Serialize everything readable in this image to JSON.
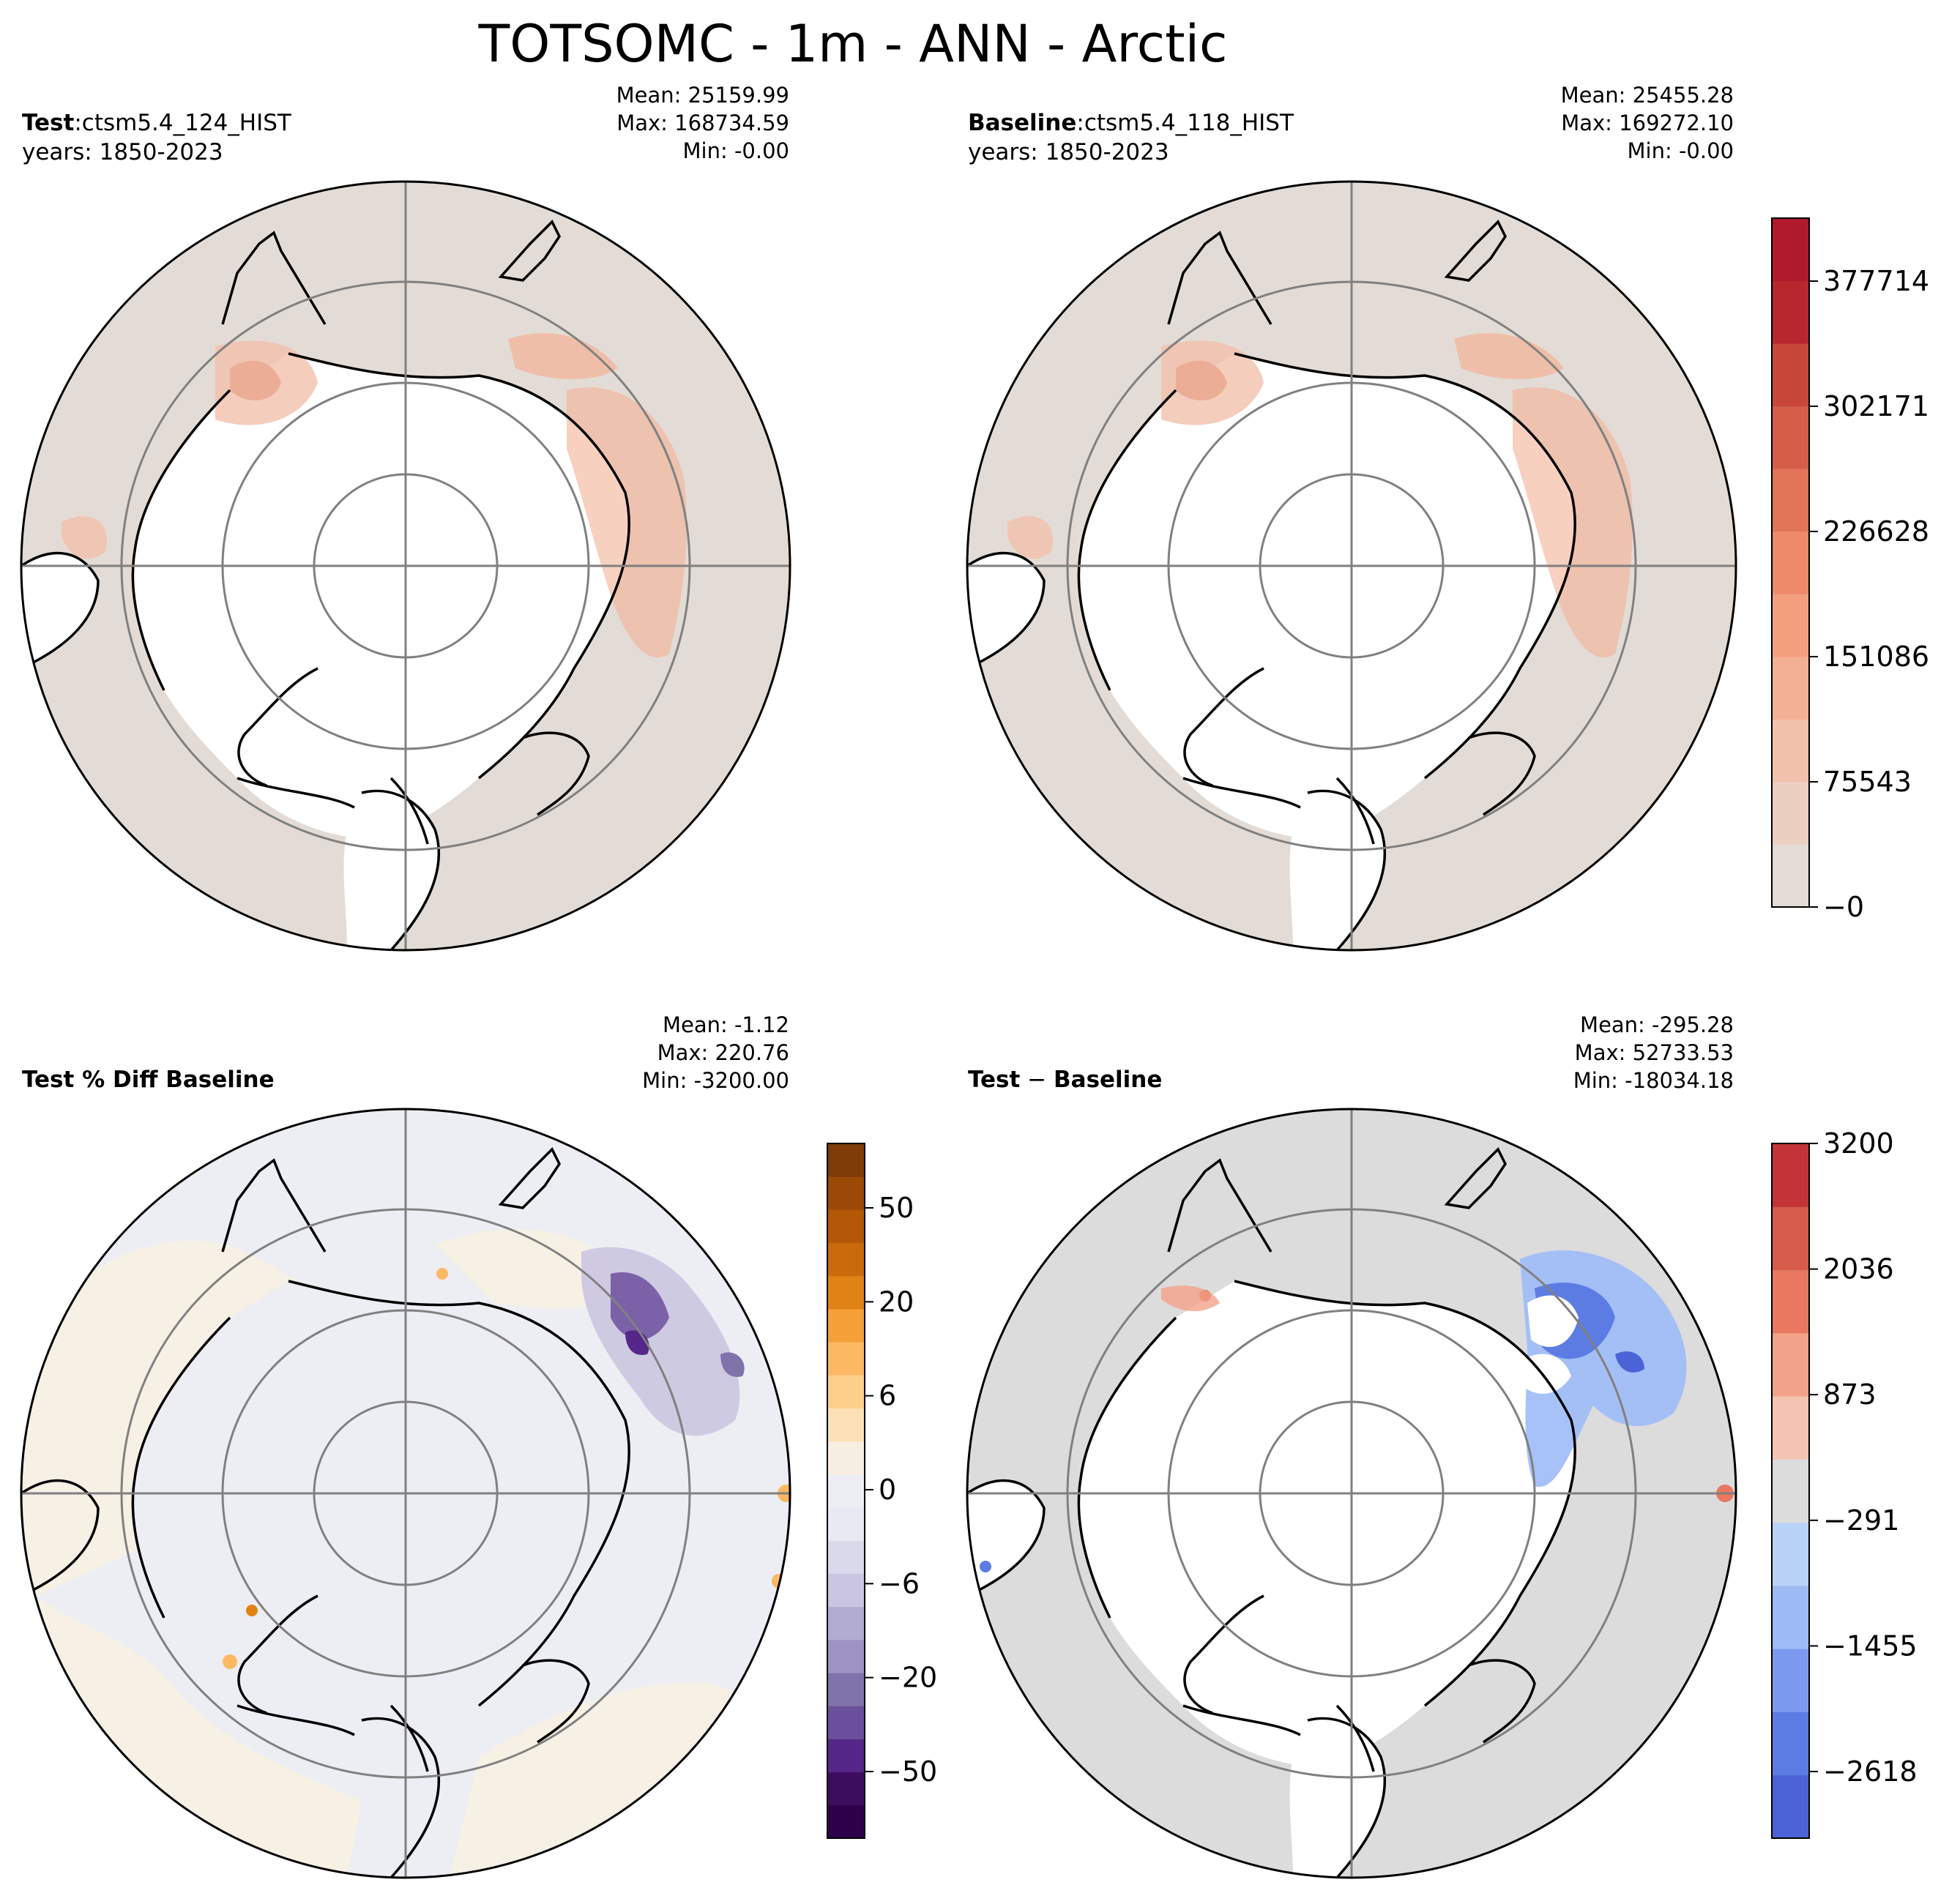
{
  "figure": {
    "title": "TOTSOMC - 1m - ANN - Arctic"
  },
  "panels": {
    "test": {
      "label_bold": "Test",
      "label_sep": ":",
      "label_case": "ctsm5.4_124_HIST",
      "years": "years: 1850-2023",
      "mean": "Mean: 25159.99",
      "max": "Max: 168734.59",
      "min": "Min: -0.00"
    },
    "baseline": {
      "label_bold": "Baseline",
      "label_sep": ":",
      "label_case": "ctsm5.4_118_HIST",
      "years": "years: 1850-2023",
      "mean": "Mean: 25455.28",
      "max": "Max: 169272.10",
      "min": "Min: -0.00"
    },
    "pct_diff": {
      "label_bold": "Test % Diff Baseline",
      "mean": "Mean: -1.12",
      "max": "Max: 220.76",
      "min": "Min: -3200.00"
    },
    "diff": {
      "label_bold": "Test",
      "label_sep": " − ",
      "label_case": "Baseline",
      "mean": "Mean: -295.28",
      "max": "Max: 52733.53",
      "min": "Min: -18034.18"
    }
  },
  "colorbars": {
    "main": {
      "ticks": [
        "377714",
        "302171",
        "226628",
        "151086",
        "75543",
        "−0"
      ],
      "colors": [
        "#e3dcd6",
        "#ebd0c2",
        "#f1c1ab",
        "#f4b094",
        "#f39f7e",
        "#ec8a6a",
        "#e27458",
        "#d65e49",
        "#c9463b",
        "#b8262e",
        "#b01a2a"
      ]
    },
    "pct": {
      "ticks": [
        "50",
        "20",
        "6",
        "0",
        "−6",
        "−20",
        "−50"
      ],
      "colors": [
        "#2d004b",
        "#3c0d5f",
        "#542788",
        "#6c4f9c",
        "#8073ac",
        "#9d93c2",
        "#b2abd2",
        "#cac5e0",
        "#d8daeb",
        "#e8e9f2",
        "#eceef3",
        "#f8efe3",
        "#fee0b6",
        "#fdcf8a",
        "#fdb863",
        "#f5a038",
        "#e08214",
        "#c96a0c",
        "#b35806",
        "#9a4a06",
        "#7f3b08"
      ]
    },
    "diff": {
      "ticks": [
        "3200",
        "2036",
        "873",
        "−291",
        "−1455",
        "−2618"
      ],
      "colors": [
        "#4b63d6",
        "#5d7ce3",
        "#7a9af0",
        "#9dbbf7",
        "#bad2f7",
        "#dcdcdc",
        "#f2c4b1",
        "#f2a288",
        "#e8785f",
        "#d65b4b",
        "#c43336"
      ]
    }
  },
  "map_colors": {
    "land_main": "#e3dcd6",
    "land_pct": "#eceef3",
    "land_diff": "#dcdcdc",
    "ocean": "#ffffff",
    "gridline": "#808080",
    "coast": "#000000"
  }
}
